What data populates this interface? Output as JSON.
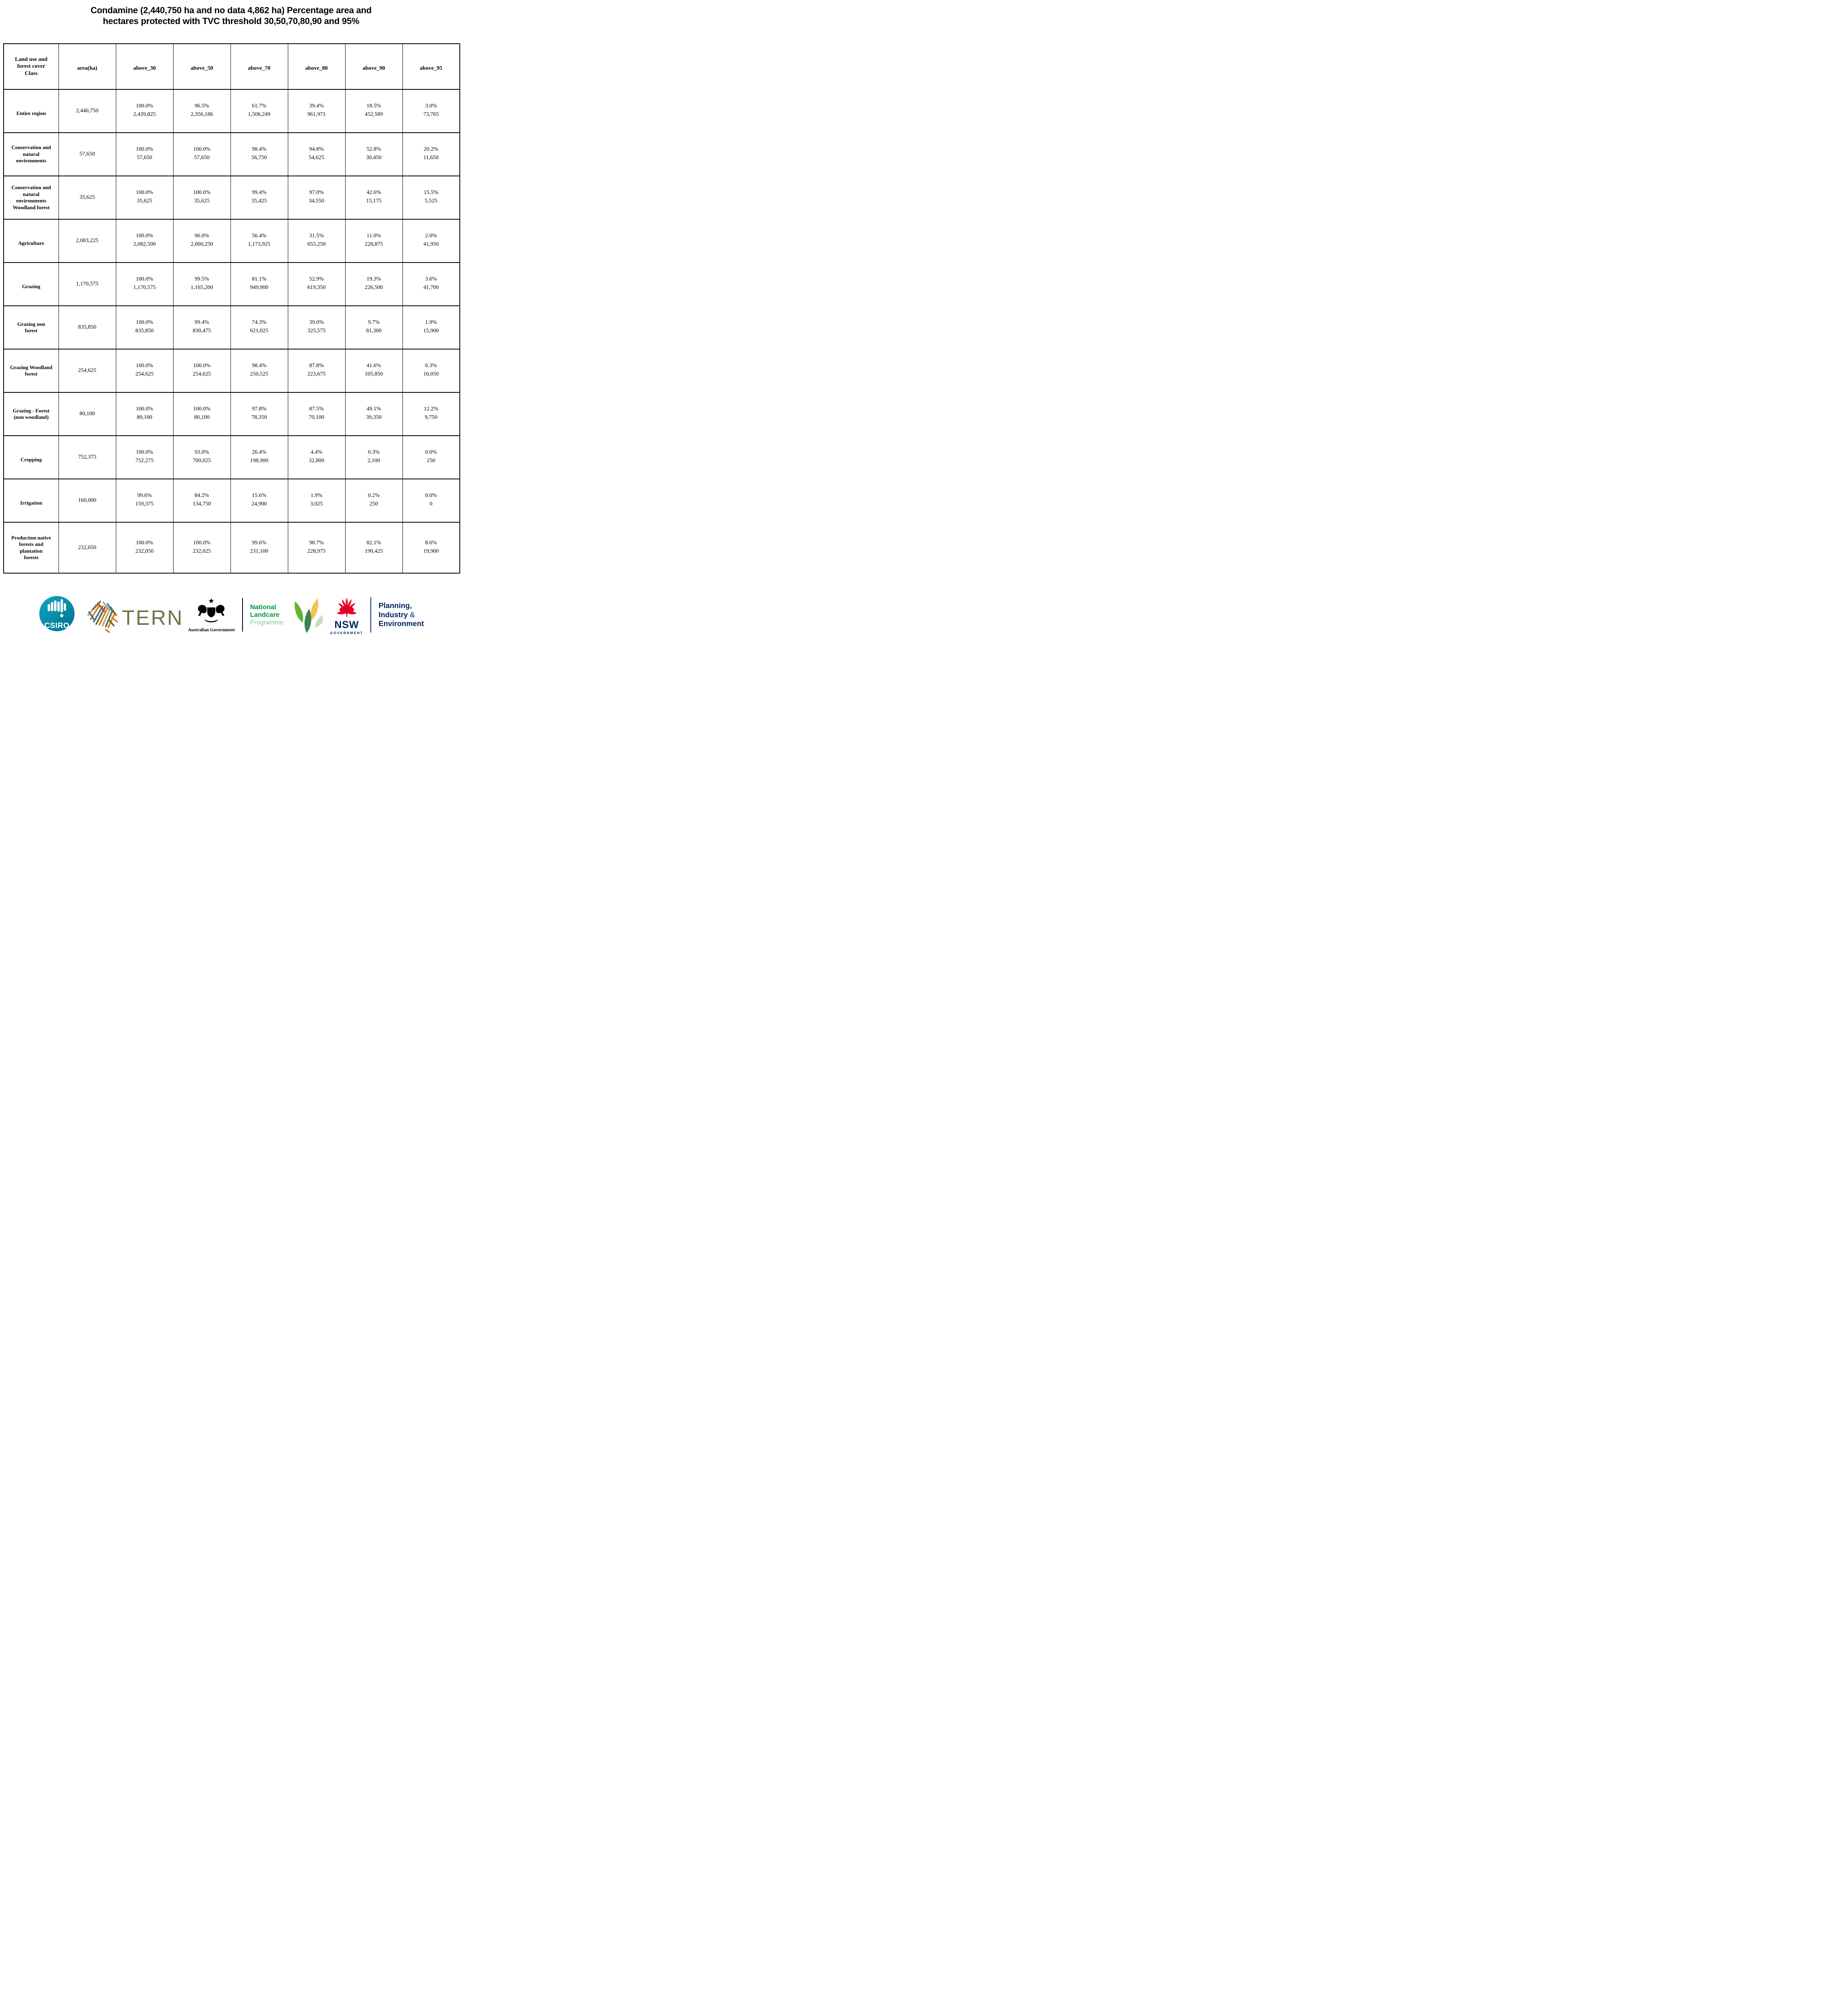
{
  "title": {
    "line1": "Condamine (2,440,750 ha and no data 4,862 ha) Percentage area and",
    "line2": "hectares protected with TVC threshold 30,50,70,80,90 and 95%"
  },
  "table": {
    "headers": [
      "Land use and\nforest cover\nClass",
      "area(ha)",
      "above_30",
      "above_50",
      "above_70",
      "above_80",
      "above_90",
      "above_95"
    ],
    "rows": [
      {
        "label": "Entire region",
        "area": "2,440,750",
        "tall": false,
        "cells": [
          {
            "pct": "100.0%",
            "ha": "2,439,825"
          },
          {
            "pct": "96.5%",
            "ha": "2,356,186"
          },
          {
            "pct": "61.7%",
            "ha": "1,506,249"
          },
          {
            "pct": "39.4%",
            "ha": "961,971"
          },
          {
            "pct": "18.5%",
            "ha": "452,589"
          },
          {
            "pct": "3.0%",
            "ha": "73,765"
          }
        ]
      },
      {
        "label": "Conservation and\nnatural\nenvironments",
        "area": "57,650",
        "tall": false,
        "cells": [
          {
            "pct": "100.0%",
            "ha": "57,650"
          },
          {
            "pct": "100.0%",
            "ha": "57,650"
          },
          {
            "pct": "98.4%",
            "ha": "56,750"
          },
          {
            "pct": "94.8%",
            "ha": "54,625"
          },
          {
            "pct": "52.8%",
            "ha": "30,450"
          },
          {
            "pct": "20.2%",
            "ha": "11,650"
          }
        ]
      },
      {
        "label": "Conservation and\nnatural\nenvironments\nWoodland forest",
        "area": "35,625",
        "tall": false,
        "cells": [
          {
            "pct": "100.0%",
            "ha": "35,625"
          },
          {
            "pct": "100.0%",
            "ha": "35,625"
          },
          {
            "pct": "99.4%",
            "ha": "35,425"
          },
          {
            "pct": "97.0%",
            "ha": "34,550"
          },
          {
            "pct": "42.6%",
            "ha": "15,175"
          },
          {
            "pct": "15.5%",
            "ha": "5,525"
          }
        ]
      },
      {
        "label": "Agriculture",
        "area": "2,083,225",
        "tall": false,
        "cells": [
          {
            "pct": "100.0%",
            "ha": "2,082,500"
          },
          {
            "pct": "96.0%",
            "ha": "2,000,250"
          },
          {
            "pct": "56.4%",
            "ha": "1,173,925"
          },
          {
            "pct": "31.5%",
            "ha": "655,250"
          },
          {
            "pct": "11.0%",
            "ha": "228,875"
          },
          {
            "pct": "2.0%",
            "ha": "41,950"
          }
        ]
      },
      {
        "label": "Grazing",
        "area": "1,170,575",
        "tall": false,
        "cells": [
          {
            "pct": "100.0%",
            "ha": "1,170,575"
          },
          {
            "pct": "99.5%",
            "ha": "1,165,200"
          },
          {
            "pct": "81.1%",
            "ha": "949,900"
          },
          {
            "pct": "52.9%",
            "ha": "619,350"
          },
          {
            "pct": "19.3%",
            "ha": "226,500"
          },
          {
            "pct": "3.6%",
            "ha": "41,700"
          }
        ]
      },
      {
        "label": "Grazing non\nforest",
        "area": "835,850",
        "tall": false,
        "cells": [
          {
            "pct": "100.0%",
            "ha": "835,850"
          },
          {
            "pct": "99.4%",
            "ha": "830,475"
          },
          {
            "pct": "74.3%",
            "ha": "621,025"
          },
          {
            "pct": "39.0%",
            "ha": "325,575"
          },
          {
            "pct": "9.7%",
            "ha": "81,300"
          },
          {
            "pct": "1.9%",
            "ha": "15,900"
          }
        ]
      },
      {
        "label": "Grazing Woodland\nforest",
        "area": "254,625",
        "tall": false,
        "cells": [
          {
            "pct": "100.0%",
            "ha": "254,625"
          },
          {
            "pct": "100.0%",
            "ha": "254,625"
          },
          {
            "pct": "98.4%",
            "ha": "250,525"
          },
          {
            "pct": "87.8%",
            "ha": "223,675"
          },
          {
            "pct": "41.6%",
            "ha": "105,850"
          },
          {
            "pct": "6.3%",
            "ha": "16,050"
          }
        ]
      },
      {
        "label": "Grazing - Forest\n(non woodland)",
        "area": "80,100",
        "tall": false,
        "cells": [
          {
            "pct": "100.0%",
            "ha": "80,100"
          },
          {
            "pct": "100.0%",
            "ha": "80,100"
          },
          {
            "pct": "97.8%",
            "ha": "78,350"
          },
          {
            "pct": "87.5%",
            "ha": "70,100"
          },
          {
            "pct": "49.1%",
            "ha": "39,350"
          },
          {
            "pct": "12.2%",
            "ha": "9,750"
          }
        ]
      },
      {
        "label": "Cropping",
        "area": "752,375",
        "tall": false,
        "cells": [
          {
            "pct": "100.0%",
            "ha": "752,275"
          },
          {
            "pct": "93.0%",
            "ha": "700,025"
          },
          {
            "pct": "26.4%",
            "ha": "198,900"
          },
          {
            "pct": "4.4%",
            "ha": "32,800"
          },
          {
            "pct": "0.3%",
            "ha": "2,100"
          },
          {
            "pct": "0.0%",
            "ha": "250"
          }
        ]
      },
      {
        "label": "Irrigation",
        "area": "160,000",
        "tall": false,
        "cells": [
          {
            "pct": "99.6%",
            "ha": "159,375"
          },
          {
            "pct": "84.2%",
            "ha": "134,750"
          },
          {
            "pct": "15.6%",
            "ha": "24,900"
          },
          {
            "pct": "1.9%",
            "ha": "3,025"
          },
          {
            "pct": "0.2%",
            "ha": "250"
          },
          {
            "pct": "0.0%",
            "ha": "0"
          }
        ]
      },
      {
        "label": "Production native\nforests and\nplantation\nforests",
        "area": "232,050",
        "tall": true,
        "cells": [
          {
            "pct": "100.0%",
            "ha": "232,050"
          },
          {
            "pct": "100.0%",
            "ha": "232,025"
          },
          {
            "pct": "99.6%",
            "ha": "231,100"
          },
          {
            "pct": "98.7%",
            "ha": "228,975"
          },
          {
            "pct": "82.1%",
            "ha": "190,425"
          },
          {
            "pct": "8.6%",
            "ha": "19,900"
          }
        ]
      }
    ]
  },
  "footer": {
    "csiro_label": "CSIRO",
    "tern_label": "TERN",
    "aus_gov_label": "Australian Government",
    "landcare_line1": "National",
    "landcare_line2": "Landcare",
    "landcare_line3": "Programme",
    "nsw_label": "NSW",
    "nsw_sub": "GOVERNMENT",
    "dept_line1": "Planning,",
    "dept_line2a": "Industry",
    "dept_line2b": "&",
    "dept_line3": "Environment"
  },
  "colors": {
    "csiro_teal": "#0f9bb5",
    "tern_olive": "#6e7645",
    "tern_orange": "#e8731d",
    "tern_blue": "#44709e",
    "tern_sage": "#a3b08c",
    "tern_green": "#5d6b33",
    "tern_red": "#c94f1e",
    "landcare_green": "#009a44",
    "landcare_light_green": "#7cc795",
    "leaf_bright_green": "#62b32e",
    "leaf_yellow": "#f4c04b",
    "leaf_sage": "#c2d6bc",
    "leaf_dark_green": "#2f7d4a",
    "nsw_red": "#e4002b",
    "nsw_navy": "#002664",
    "text_black": "#000000"
  }
}
